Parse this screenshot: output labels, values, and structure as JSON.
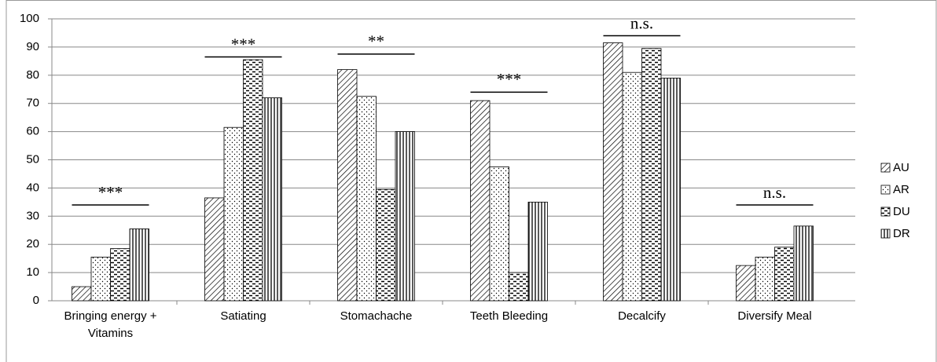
{
  "chart_data": {
    "type": "bar",
    "categories": [
      "Bringing energy + Vitamins",
      "Satiating",
      "Stomachache",
      "Teeth Bleeding",
      "Decalcify",
      "Diversify Meal"
    ],
    "series": [
      {
        "name": "AU",
        "color": "#000000",
        "pattern": "diagonal",
        "values": [
          5,
          36.5,
          82,
          71,
          91.5,
          12.5
        ]
      },
      {
        "name": "AR",
        "color": "#000000",
        "pattern": "dots",
        "values": [
          15.5,
          61.5,
          72.5,
          47.5,
          81,
          15.5
        ]
      },
      {
        "name": "DU",
        "color": "#000000",
        "pattern": "dashes",
        "values": [
          18.5,
          85.5,
          39.5,
          10,
          89.5,
          19
        ]
      },
      {
        "name": "DR",
        "color": "#000000",
        "pattern": "vertical",
        "values": [
          25.5,
          72,
          60,
          35,
          79,
          26.5
        ]
      }
    ],
    "annotations": [
      "***",
      "***",
      "**",
      "***",
      "n.s.",
      "n.s."
    ],
    "annotation_levels": [
      34,
      86.5,
      87.5,
      74,
      94,
      34
    ],
    "ylim": [
      0,
      100
    ],
    "yticks": [
      0,
      10,
      20,
      30,
      40,
      50,
      60,
      70,
      80,
      90,
      100
    ],
    "grid": true,
    "legend": "right"
  }
}
